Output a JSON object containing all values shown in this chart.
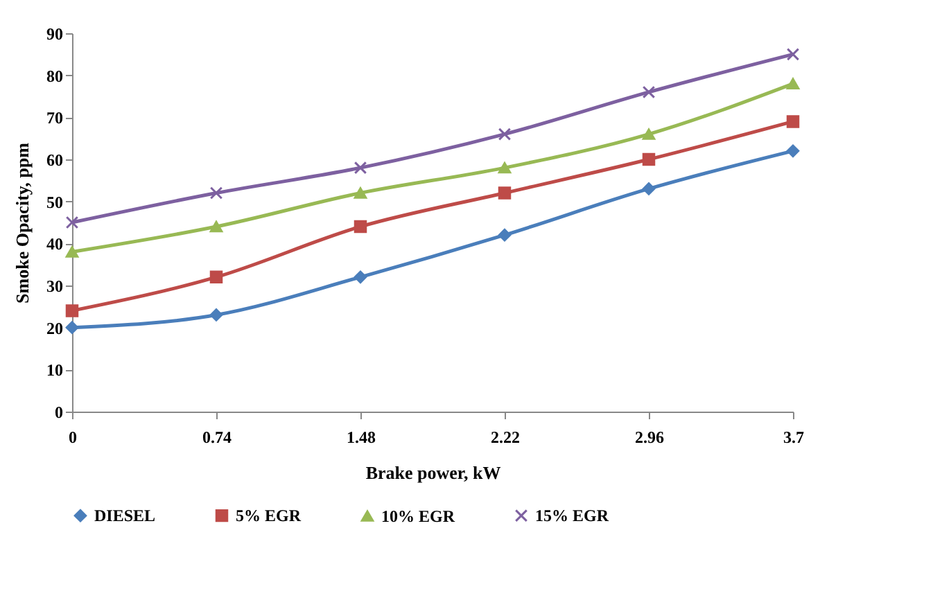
{
  "chart_data": {
    "type": "line",
    "xlabel": "Brake power, kW",
    "ylabel": "Smoke Opacity,  ppm",
    "x": [
      0,
      0.74,
      1.48,
      2.22,
      2.96,
      3.7
    ],
    "xlim": [
      0,
      3.7
    ],
    "xticks": [
      0,
      0.74,
      1.48,
      2.22,
      2.96,
      3.7
    ],
    "ylim": [
      0,
      90
    ],
    "yticks": [
      0,
      10,
      20,
      30,
      40,
      50,
      60,
      70,
      80,
      90
    ],
    "grid": false,
    "legend": "bottom",
    "series": [
      {
        "name": "DIESEL",
        "color": "#4a7ebb",
        "marker": "diamond",
        "values": [
          20,
          23,
          32,
          42,
          53,
          62
        ]
      },
      {
        "name": "5% EGR",
        "color": "#be4b48",
        "marker": "square",
        "values": [
          24,
          32,
          44,
          52,
          60,
          69
        ]
      },
      {
        "name": "10% EGR",
        "color": "#98b954",
        "marker": "triangle",
        "values": [
          38,
          44,
          52,
          58,
          66,
          78
        ]
      },
      {
        "name": "15% EGR",
        "color": "#7d60a0",
        "marker": "cross",
        "values": [
          45,
          52,
          58,
          66,
          76,
          85
        ]
      }
    ]
  }
}
